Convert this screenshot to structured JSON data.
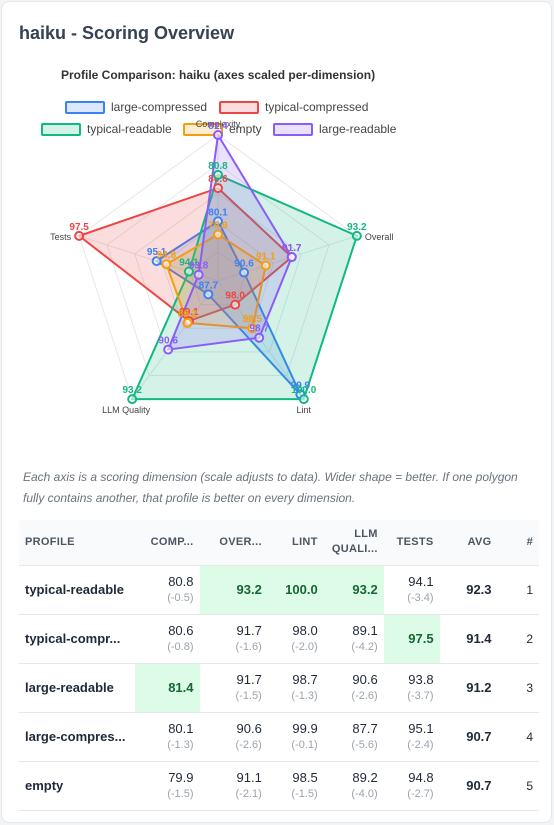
{
  "page": {
    "title": "haiku - Scoring Overview"
  },
  "caption": "Each axis is a scoring dimension (scale adjusts to data). Wider shape = better. If one polygon fully contains another, that profile is better on every dimension.",
  "chart_data": {
    "type": "radar",
    "title": "Profile Comparison: haiku  (axes scaled per-dimension)",
    "axes": [
      "Complexity",
      "Overall",
      "Lint",
      "LLM Quality",
      "Tests"
    ],
    "grid": true,
    "legend_position": "top",
    "series": [
      {
        "name": "large-compressed",
        "color": "#3b82f6",
        "values": [
          80.1,
          90.6,
          99.9,
          87.7,
          95.1
        ]
      },
      {
        "name": "typical-compressed",
        "color": "#ef4444",
        "values": [
          80.6,
          91.7,
          98.0,
          89.1,
          97.5
        ]
      },
      {
        "name": "typical-readable",
        "color": "#10b981",
        "values": [
          80.8,
          93.2,
          100.0,
          93.2,
          94.1
        ]
      },
      {
        "name": "empty",
        "color": "#f59e0b",
        "values": [
          79.9,
          91.1,
          98.5,
          89.2,
          94.8
        ]
      },
      {
        "name": "large-readable",
        "color": "#8b5cf6",
        "values": [
          81.4,
          91.7,
          98.7,
          90.6,
          93.8
        ]
      }
    ],
    "axis_min": [
      79.2,
      90.0,
      97.5,
      87.0,
      93.2
    ],
    "axis_max": [
      81.4,
      93.2,
      100.0,
      93.2,
      97.5
    ]
  },
  "table": {
    "headers": {
      "profile": "PROFILE",
      "complexity": "COMP...",
      "overall": "OVER...",
      "lint": "LINT",
      "llm_line1": "LLM",
      "llm_line2": "QUALI...",
      "tests": "TESTS",
      "avg": "AVG",
      "rank": "#"
    },
    "rows": [
      {
        "profile": "typical-readable",
        "complexity": "80.8",
        "complexity_delta": "(-0.5)",
        "complexity_best": false,
        "overall": "93.2",
        "overall_delta": "",
        "overall_best": true,
        "lint": "100.0",
        "lint_delta": "",
        "lint_best": true,
        "llm": "93.2",
        "llm_delta": "",
        "llm_best": true,
        "tests": "94.1",
        "tests_delta": "(-3.4)",
        "tests_best": false,
        "avg": "92.3",
        "rank": "1"
      },
      {
        "profile": "typical-compr...",
        "complexity": "80.6",
        "complexity_delta": "(-0.8)",
        "complexity_best": false,
        "overall": "91.7",
        "overall_delta": "(-1.6)",
        "overall_best": false,
        "lint": "98.0",
        "lint_delta": "(-2.0)",
        "lint_best": false,
        "llm": "89.1",
        "llm_delta": "(-4.2)",
        "llm_best": false,
        "tests": "97.5",
        "tests_delta": "",
        "tests_best": true,
        "avg": "91.4",
        "rank": "2"
      },
      {
        "profile": "large-readable",
        "complexity": "81.4",
        "complexity_delta": "",
        "complexity_best": true,
        "overall": "91.7",
        "overall_delta": "(-1.5)",
        "overall_best": false,
        "lint": "98.7",
        "lint_delta": "(-1.3)",
        "lint_best": false,
        "llm": "90.6",
        "llm_delta": "(-2.6)",
        "llm_best": false,
        "tests": "93.8",
        "tests_delta": "(-3.7)",
        "tests_best": false,
        "avg": "91.2",
        "rank": "3"
      },
      {
        "profile": "large-compres...",
        "complexity": "80.1",
        "complexity_delta": "(-1.3)",
        "complexity_best": false,
        "overall": "90.6",
        "overall_delta": "(-2.6)",
        "overall_best": false,
        "lint": "99.9",
        "lint_delta": "(-0.1)",
        "lint_best": false,
        "llm": "87.7",
        "llm_delta": "(-5.6)",
        "llm_best": false,
        "tests": "95.1",
        "tests_delta": "(-2.4)",
        "tests_best": false,
        "avg": "90.7",
        "rank": "4"
      },
      {
        "profile": "empty",
        "complexity": "79.9",
        "complexity_delta": "(-1.5)",
        "complexity_best": false,
        "overall": "91.1",
        "overall_delta": "(-2.1)",
        "overall_best": false,
        "lint": "98.5",
        "lint_delta": "(-1.5)",
        "lint_best": false,
        "llm": "89.2",
        "llm_delta": "(-4.0)",
        "llm_best": false,
        "tests": "94.8",
        "tests_delta": "(-2.7)",
        "tests_best": false,
        "avg": "90.7",
        "rank": "5"
      }
    ]
  }
}
